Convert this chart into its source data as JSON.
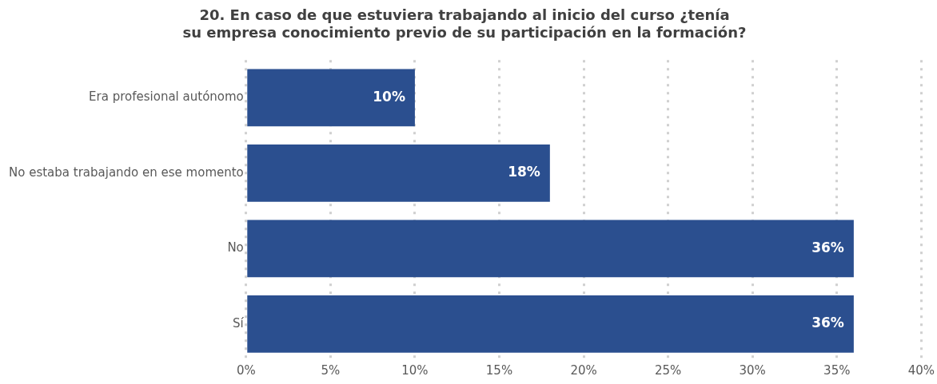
{
  "chart_data": {
    "type": "bar",
    "orientation": "horizontal",
    "title": "20. En caso de que estuviera trabajando al inicio del curso ¿tenía su empresa conocimiento previo de su participación en la formación?",
    "categories": [
      "Era profesional autónomo",
      "No estaba trabajando en ese momento",
      "No",
      "Sí"
    ],
    "values": [
      10,
      18,
      36,
      36
    ],
    "value_labels": [
      "10%",
      "18%",
      "36%",
      "36%"
    ],
    "color": "#2b4f8f",
    "xlim": [
      0,
      40
    ],
    "xticks": [
      {
        "value": 0,
        "label": "0%"
      },
      {
        "value": 5,
        "label": "5%"
      },
      {
        "value": 10,
        "label": "10%"
      },
      {
        "value": 15,
        "label": "15%"
      },
      {
        "value": 20,
        "label": "20%"
      },
      {
        "value": 25,
        "label": "25%"
      },
      {
        "value": 30,
        "label": "30%"
      },
      {
        "value": 35,
        "label": "35%"
      },
      {
        "value": 40,
        "label": "40%"
      }
    ],
    "grid": "x",
    "legend": false
  }
}
